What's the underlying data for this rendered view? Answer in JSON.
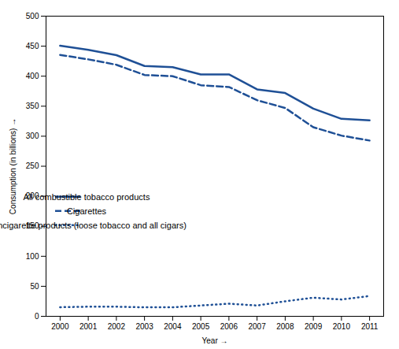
{
  "chart_data": {
    "type": "line",
    "xlabel": "Year",
    "ylabel": "Consumption (in billions)",
    "x": [
      2000,
      2001,
      2002,
      2003,
      2004,
      2005,
      2006,
      2007,
      2008,
      2009,
      2010,
      2011
    ],
    "series": [
      {
        "name": "All combustible tobacco products",
        "color": "#1f5096",
        "line_style": "solid",
        "values": [
          450.7,
          444.0,
          435.0,
          417.0,
          415.0,
          403.0,
          403.0,
          378.0,
          372.0,
          346.0,
          329.0,
          326.6
        ]
      },
      {
        "name": "Cigarettes",
        "color": "#1f5096",
        "line_style": "dashed",
        "values": [
          435.5,
          428.0,
          419.0,
          402.0,
          400.0,
          385.0,
          382.0,
          360.0,
          347.0,
          315.0,
          301.0,
          292.8
        ]
      },
      {
        "name": "Noncigarette products (loose tobacco and all cigars)",
        "color": "#1f5096",
        "line_style": "dotted",
        "values": [
          15.2,
          16.0,
          16.0,
          15.0,
          15.0,
          18.0,
          21.0,
          18.0,
          25.0,
          31.0,
          28.0,
          33.8
        ]
      }
    ],
    "xlim": [
      1999.5,
      2011.5
    ],
    "xticks": [
      2000,
      2001,
      2002,
      2003,
      2004,
      2005,
      2006,
      2007,
      2008,
      2009,
      2010,
      2011
    ],
    "ylim": [
      0,
      500
    ],
    "yticks": [
      0,
      50,
      100,
      150,
      200,
      250,
      300,
      350,
      400,
      450,
      500
    ],
    "grid": false,
    "legend": "center left"
  }
}
